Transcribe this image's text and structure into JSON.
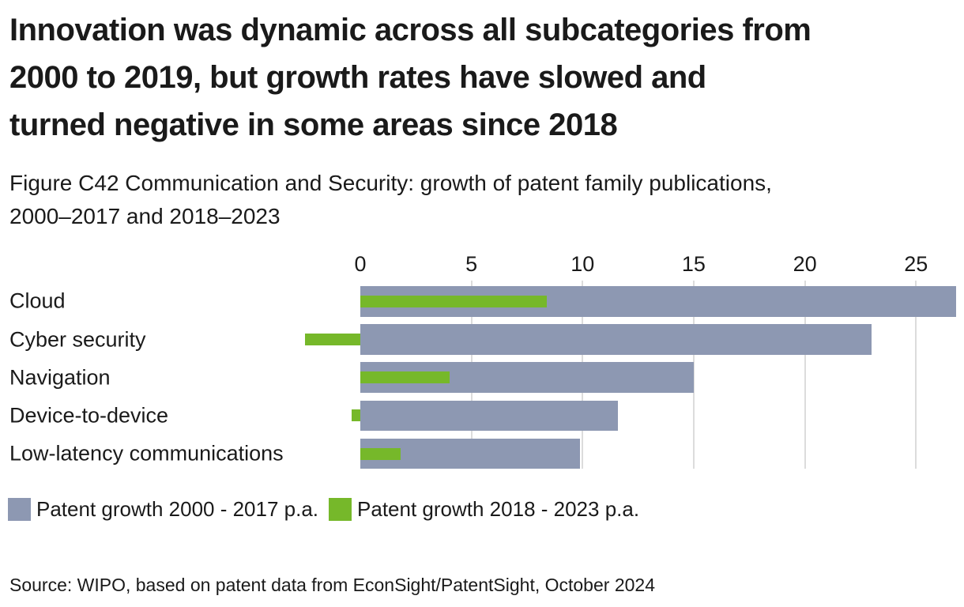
{
  "title_lines": [
    "Innovation was dynamic across all subcategories from",
    "2000 to 2019, but growth rates have slowed and",
    "turned negative in some areas since 2018"
  ],
  "subtitle_lines": [
    "Figure C42 Communication and Security: growth of patent family publications,",
    "2000–2017 and 2018–2023"
  ],
  "source": "Source: WIPO, based on patent data from EconSight/PatentSight, October 2024",
  "colors": {
    "bar_2000_2017": "#8d98b2",
    "bar_2018_2023": "#76b82a",
    "gridline": "#dcdcdc",
    "text": "#1a1a1a",
    "background": "#ffffff"
  },
  "chart_data": {
    "type": "bar",
    "orientation": "horizontal",
    "title": "Figure C42 Communication and Security: growth of patent family publications, 2000–2017 and 2018–2023",
    "categories": [
      "Cloud",
      "Cyber security",
      "Navigation",
      "Device-to-device",
      "Low-latency communications"
    ],
    "series": [
      {
        "name": "Patent growth 2000 - 2017 p.a.",
        "color": "#8d98b2",
        "values": [
          26.8,
          23.0,
          15.0,
          11.6,
          9.9
        ]
      },
      {
        "name": "Patent growth 2018 - 2023 p.a.",
        "color": "#76b82a",
        "values": [
          8.4,
          -2.5,
          4.0,
          -0.4,
          1.8
        ]
      }
    ],
    "xticks": [
      0,
      5,
      10,
      15,
      20,
      25
    ],
    "xlim": [
      -2.5,
      26.8
    ],
    "xlabel": "",
    "ylabel": "",
    "grid": "vertical-gridlines-light-gray",
    "legend_position": "bottom-left"
  }
}
